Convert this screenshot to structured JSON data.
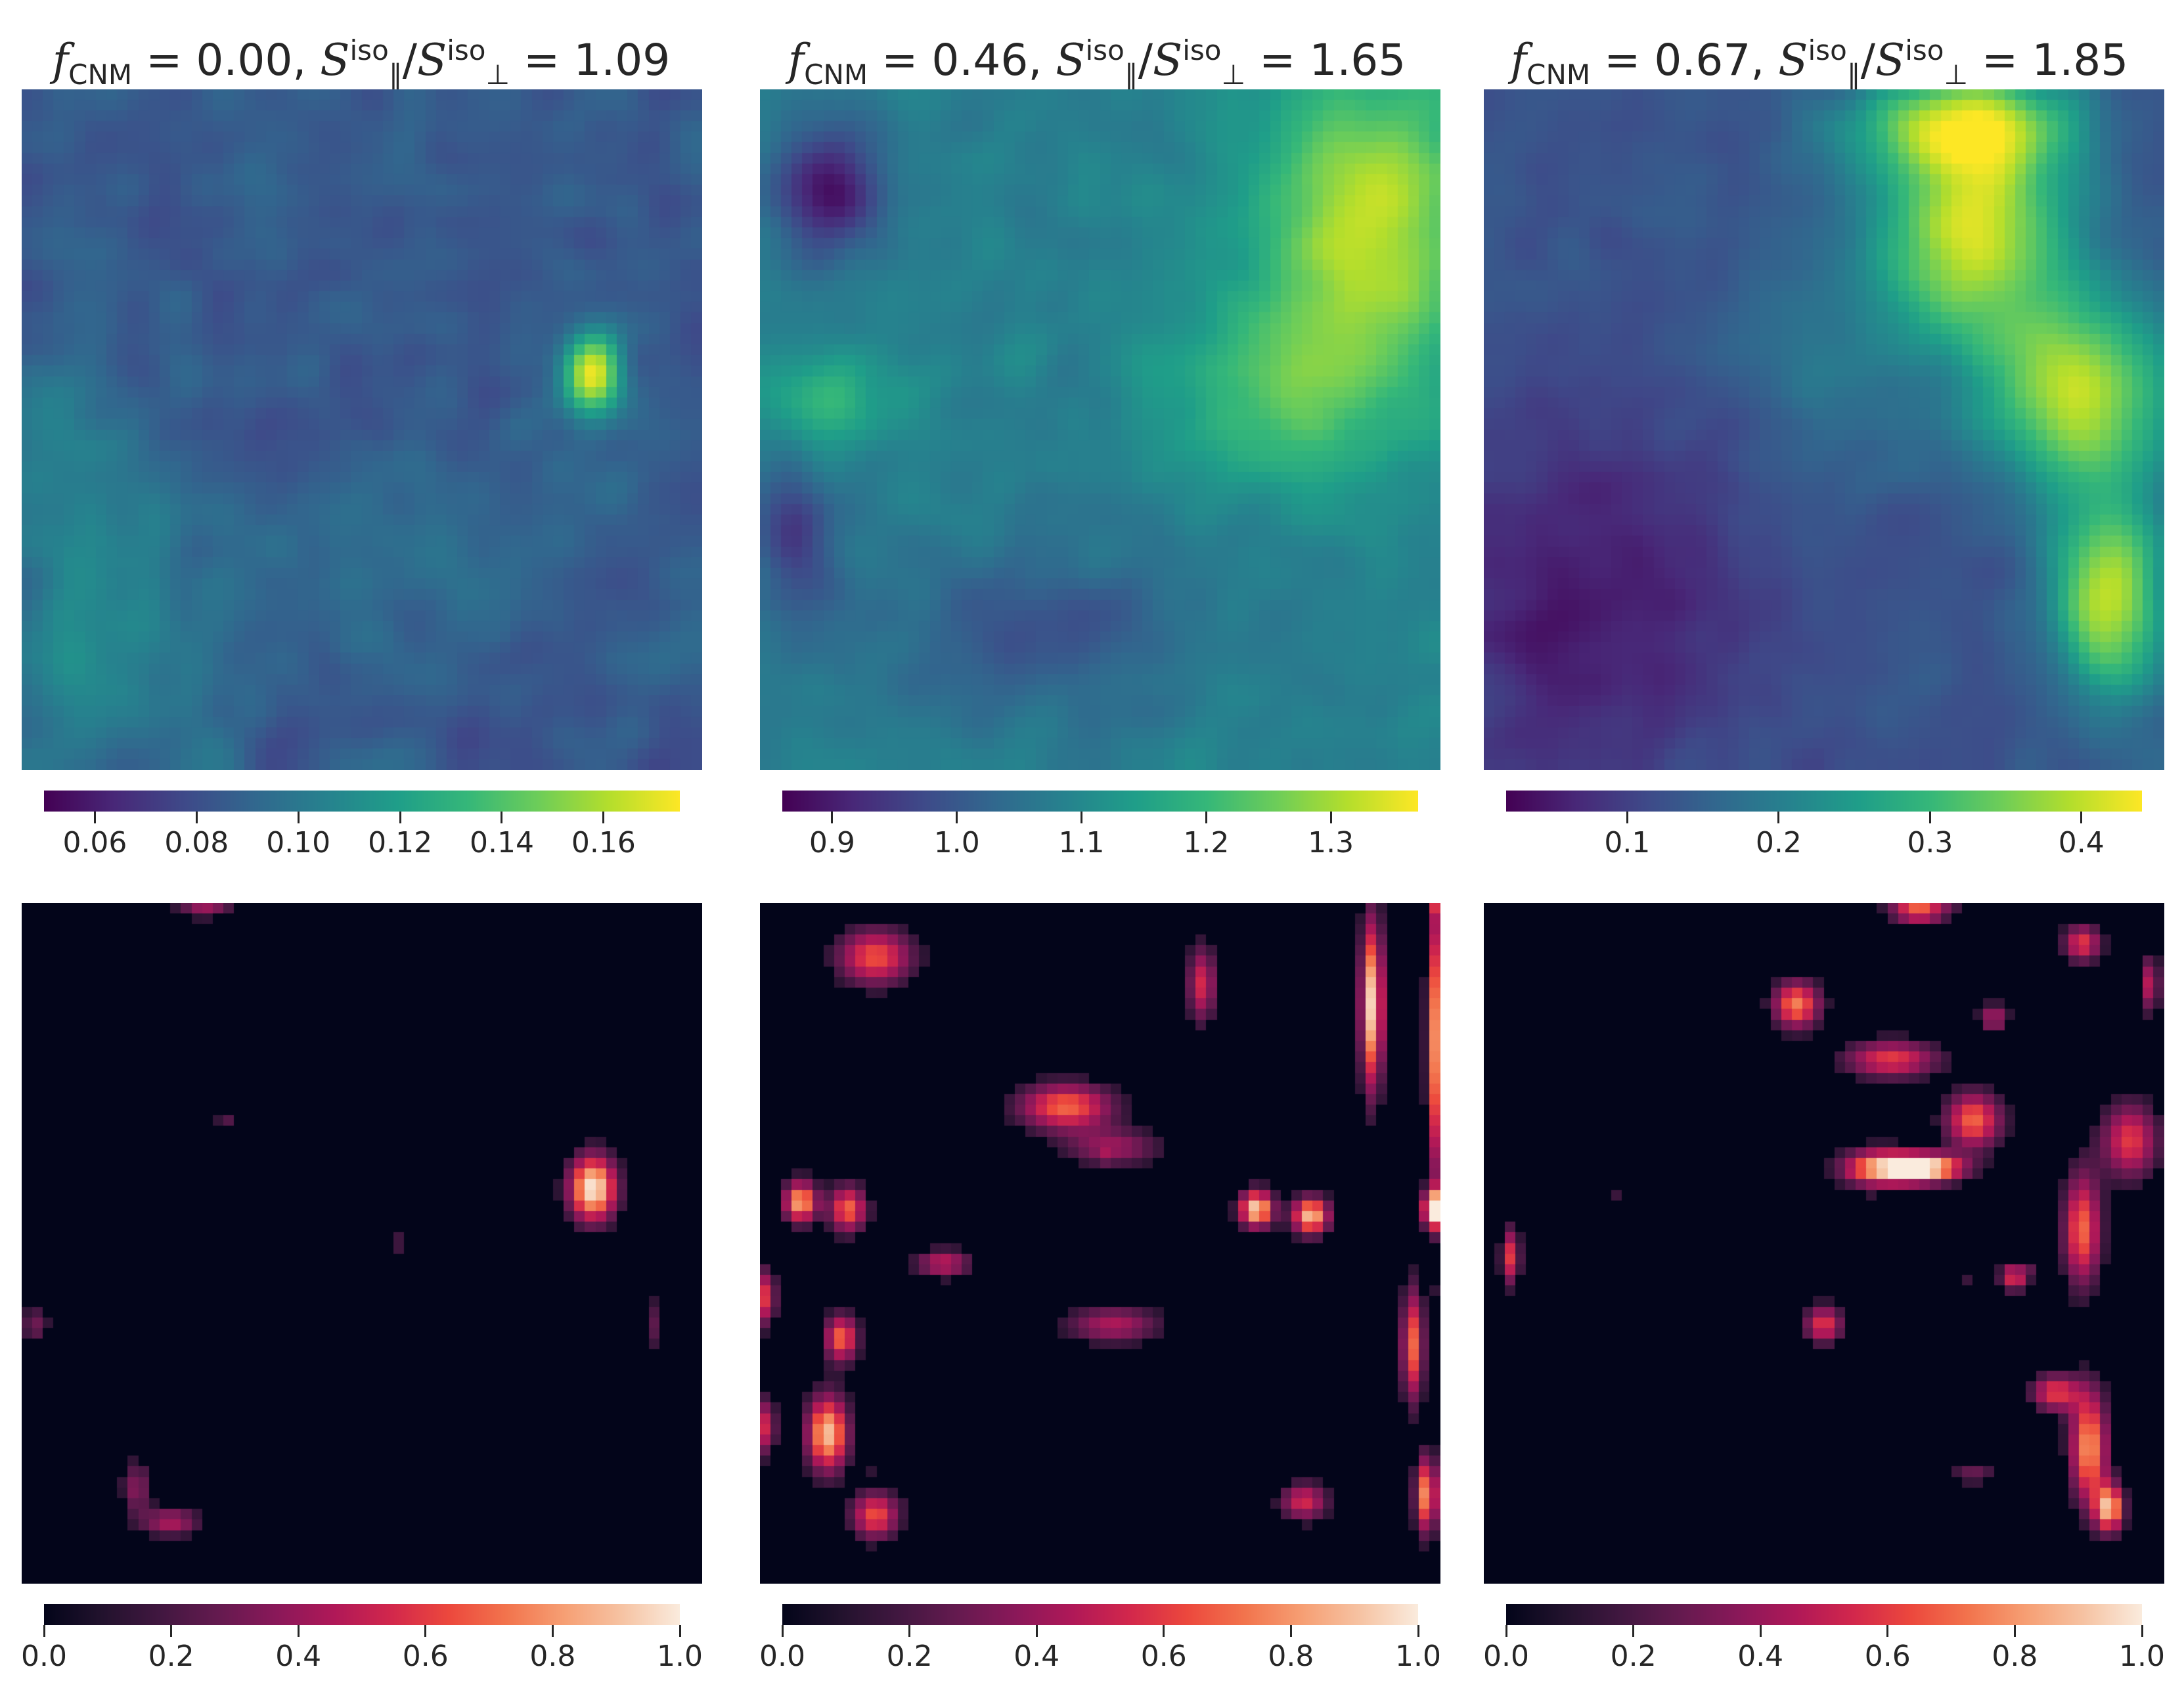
{
  "panels": [
    {
      "title_parts": {
        "f": "f",
        "sub": "CNM",
        "eq1": " = 0.00, ",
        "s1": "S",
        "sup1": "iso",
        "sub1": "∥",
        "slash": "/",
        "s2": "S",
        "sup2": "iso",
        "sub2": "⊥",
        "eq2": " = 1.09"
      }
    },
    {
      "title_parts": {
        "f": "f",
        "sub": "CNM",
        "eq1": " = 0.46, ",
        "s1": "S",
        "sup1": "iso",
        "sub1": "∥",
        "slash": "/",
        "s2": "S",
        "sup2": "iso",
        "sub2": "⊥",
        "eq2": " = 1.65"
      }
    },
    {
      "title_parts": {
        "f": "f",
        "sub": "CNM",
        "eq1": " = 0.67, ",
        "s1": "S",
        "sup1": "iso",
        "sub1": "∥",
        "slash": "/",
        "s2": "S",
        "sup2": "iso",
        "sub2": "⊥",
        "eq2": " = 1.85"
      }
    }
  ],
  "chart_data": [
    {
      "type": "heatmap",
      "colormap": "viridis",
      "grid_shape": [
        64,
        64
      ],
      "range": [
        0.05,
        0.175
      ],
      "colorbar": {
        "orientation": "horizontal",
        "ticks": [
          0.06,
          0.08,
          0.1,
          0.12,
          0.14,
          0.16
        ],
        "tick_labels": [
          "0.06",
          "0.08",
          "0.10",
          "0.12",
          "0.14",
          "0.16"
        ]
      },
      "background": 0.085,
      "features": [
        {
          "x": 0.84,
          "y": 0.42,
          "sx": 0.03,
          "sy": 0.04,
          "amp": 0.09
        },
        {
          "x": 0.1,
          "y": 0.8,
          "sx": 0.12,
          "sy": 0.14,
          "amp": 0.025
        },
        {
          "x": 0.05,
          "y": 0.5,
          "sx": 0.06,
          "sy": 0.1,
          "amp": 0.015
        },
        {
          "x": 0.6,
          "y": 0.7,
          "sx": 0.15,
          "sy": 0.1,
          "amp": 0.01
        }
      ],
      "noise_amp": 0.012
    },
    {
      "type": "heatmap",
      "colormap": "viridis",
      "grid_shape": [
        64,
        64
      ],
      "range": [
        0.86,
        1.37
      ],
      "colorbar": {
        "orientation": "horizontal",
        "ticks": [
          0.9,
          1.0,
          1.1,
          1.2,
          1.3
        ],
        "tick_labels": [
          "0.9",
          "1.0",
          "1.1",
          "1.2",
          "1.3"
        ]
      },
      "background": 1.08,
      "features": [
        {
          "x": 0.9,
          "y": 0.2,
          "sx": 0.12,
          "sy": 0.18,
          "amp": 0.24
        },
        {
          "x": 0.75,
          "y": 0.45,
          "sx": 0.12,
          "sy": 0.1,
          "amp": 0.12
        },
        {
          "x": 0.1,
          "y": 0.46,
          "sx": 0.07,
          "sy": 0.05,
          "amp": 0.1
        },
        {
          "x": 0.1,
          "y": 0.15,
          "sx": 0.06,
          "sy": 0.07,
          "amp": -0.18
        },
        {
          "x": 0.4,
          "y": 0.8,
          "sx": 0.18,
          "sy": 0.08,
          "amp": -0.09
        },
        {
          "x": 0.05,
          "y": 0.65,
          "sx": 0.04,
          "sy": 0.08,
          "amp": -0.12
        }
      ],
      "noise_amp": 0.03
    },
    {
      "type": "heatmap",
      "colormap": "viridis",
      "grid_shape": [
        64,
        64
      ],
      "range": [
        0.02,
        0.44
      ],
      "colorbar": {
        "orientation": "horizontal",
        "ticks": [
          0.1,
          0.2,
          0.3,
          0.4
        ],
        "tick_labels": [
          "0.1",
          "0.2",
          "0.3",
          "0.4"
        ]
      },
      "background": 0.13,
      "features": [
        {
          "x": 0.72,
          "y": 0.2,
          "sx": 0.1,
          "sy": 0.12,
          "amp": 0.28
        },
        {
          "x": 0.88,
          "y": 0.45,
          "sx": 0.1,
          "sy": 0.1,
          "amp": 0.26
        },
        {
          "x": 0.92,
          "y": 0.75,
          "sx": 0.06,
          "sy": 0.1,
          "amp": 0.27
        },
        {
          "x": 0.7,
          "y": 0.05,
          "sx": 0.12,
          "sy": 0.05,
          "amp": 0.2
        },
        {
          "x": 0.15,
          "y": 0.75,
          "sx": 0.18,
          "sy": 0.2,
          "amp": -0.08
        },
        {
          "x": 0.5,
          "y": 0.4,
          "sx": 0.12,
          "sy": 0.12,
          "amp": 0.05
        }
      ],
      "noise_amp": 0.025
    },
    {
      "type": "heatmap",
      "colormap": "rocket",
      "grid_shape": [
        64,
        64
      ],
      "range": [
        0.0,
        1.0
      ],
      "colorbar": {
        "orientation": "horizontal",
        "ticks": [
          0.0,
          0.2,
          0.4,
          0.6,
          0.8,
          1.0
        ],
        "tick_labels": [
          "0.0",
          "0.2",
          "0.4",
          "0.6",
          "0.8",
          "1.0"
        ]
      },
      "threshold": 0.12,
      "blobs": [
        {
          "x": 0.84,
          "y": 0.42,
          "sx": 0.025,
          "sy": 0.035,
          "amp": 1.0
        },
        {
          "x": 0.22,
          "y": 0.91,
          "sx": 0.03,
          "sy": 0.015,
          "amp": 0.45
        },
        {
          "x": 0.17,
          "y": 0.86,
          "sx": 0.015,
          "sy": 0.03,
          "amp": 0.35
        },
        {
          "x": 0.27,
          "y": 0.0,
          "sx": 0.03,
          "sy": 0.015,
          "amp": 0.45
        },
        {
          "x": 0.3,
          "y": 0.32,
          "sx": 0.01,
          "sy": 0.01,
          "amp": 0.25
        },
        {
          "x": 0.93,
          "y": 0.62,
          "sx": 0.01,
          "sy": 0.03,
          "amp": 0.25
        },
        {
          "x": 0.02,
          "y": 0.62,
          "sx": 0.015,
          "sy": 0.02,
          "amp": 0.3
        },
        {
          "x": 0.55,
          "y": 0.5,
          "sx": 0.01,
          "sy": 0.02,
          "amp": 0.2
        }
      ],
      "noise_amp": 0.3,
      "noise_scale": 0.6
    },
    {
      "type": "heatmap",
      "colormap": "rocket",
      "grid_shape": [
        64,
        64
      ],
      "range": [
        0.0,
        1.0
      ],
      "colorbar": {
        "orientation": "horizontal",
        "ticks": [
          0.0,
          0.2,
          0.4,
          0.6,
          0.8,
          1.0
        ],
        "tick_labels": [
          "0.0",
          "0.2",
          "0.4",
          "0.6",
          "0.8",
          "1.0"
        ]
      },
      "threshold": 0.12,
      "blobs": [
        {
          "x": 0.9,
          "y": 0.15,
          "sx": 0.012,
          "sy": 0.09,
          "amp": 0.95
        },
        {
          "x": 0.995,
          "y": 0.2,
          "sx": 0.01,
          "sy": 0.15,
          "amp": 0.8
        },
        {
          "x": 0.995,
          "y": 0.45,
          "sx": 0.015,
          "sy": 0.02,
          "amp": 1.0
        },
        {
          "x": 0.73,
          "y": 0.45,
          "sx": 0.018,
          "sy": 0.02,
          "amp": 0.95
        },
        {
          "x": 0.81,
          "y": 0.46,
          "sx": 0.02,
          "sy": 0.02,
          "amp": 0.9
        },
        {
          "x": 0.06,
          "y": 0.44,
          "sx": 0.018,
          "sy": 0.022,
          "amp": 0.85
        },
        {
          "x": 0.13,
          "y": 0.45,
          "sx": 0.02,
          "sy": 0.025,
          "amp": 0.7
        },
        {
          "x": 0.45,
          "y": 0.3,
          "sx": 0.05,
          "sy": 0.025,
          "amp": 0.7
        },
        {
          "x": 0.17,
          "y": 0.08,
          "sx": 0.04,
          "sy": 0.03,
          "amp": 0.65
        },
        {
          "x": 0.1,
          "y": 0.78,
          "sx": 0.022,
          "sy": 0.04,
          "amp": 0.9
        },
        {
          "x": 0.17,
          "y": 0.9,
          "sx": 0.025,
          "sy": 0.025,
          "amp": 0.65
        },
        {
          "x": 0.12,
          "y": 0.64,
          "sx": 0.018,
          "sy": 0.025,
          "amp": 0.7
        },
        {
          "x": 0.96,
          "y": 0.65,
          "sx": 0.012,
          "sy": 0.06,
          "amp": 0.7
        },
        {
          "x": 0.98,
          "y": 0.87,
          "sx": 0.012,
          "sy": 0.04,
          "amp": 0.8
        },
        {
          "x": 0.8,
          "y": 0.88,
          "sx": 0.025,
          "sy": 0.02,
          "amp": 0.55
        },
        {
          "x": 0.27,
          "y": 0.53,
          "sx": 0.03,
          "sy": 0.015,
          "amp": 0.5
        },
        {
          "x": 0.52,
          "y": 0.62,
          "sx": 0.05,
          "sy": 0.02,
          "amp": 0.45
        },
        {
          "x": 0.65,
          "y": 0.12,
          "sx": 0.015,
          "sy": 0.04,
          "amp": 0.55
        },
        {
          "x": 0.52,
          "y": 0.36,
          "sx": 0.05,
          "sy": 0.02,
          "amp": 0.4
        },
        {
          "x": 0.01,
          "y": 0.58,
          "sx": 0.01,
          "sy": 0.03,
          "amp": 0.6
        },
        {
          "x": 0.01,
          "y": 0.77,
          "sx": 0.01,
          "sy": 0.03,
          "amp": 0.55
        }
      ],
      "noise_amp": 0.45,
      "noise_scale": 0.5
    },
    {
      "type": "heatmap",
      "colormap": "rocket",
      "grid_shape": [
        64,
        64
      ],
      "range": [
        0.0,
        1.0
      ],
      "colorbar": {
        "orientation": "horizontal",
        "ticks": [
          0.0,
          0.2,
          0.4,
          0.6,
          0.8,
          1.0
        ],
        "tick_labels": [
          "0.0",
          "0.2",
          "0.4",
          "0.6",
          "0.8",
          "1.0"
        ]
      },
      "threshold": 0.12,
      "blobs": [
        {
          "x": 0.65,
          "y": 0.39,
          "sx": 0.04,
          "sy": 0.015,
          "amp": 1.0
        },
        {
          "x": 0.58,
          "y": 0.39,
          "sx": 0.04,
          "sy": 0.02,
          "amp": 0.75
        },
        {
          "x": 0.72,
          "y": 0.32,
          "sx": 0.03,
          "sy": 0.03,
          "amp": 0.7
        },
        {
          "x": 0.6,
          "y": 0.23,
          "sx": 0.05,
          "sy": 0.02,
          "amp": 0.6
        },
        {
          "x": 0.46,
          "y": 0.15,
          "sx": 0.025,
          "sy": 0.025,
          "amp": 0.75
        },
        {
          "x": 0.88,
          "y": 0.48,
          "sx": 0.02,
          "sy": 0.06,
          "amp": 0.7
        },
        {
          "x": 0.95,
          "y": 0.35,
          "sx": 0.03,
          "sy": 0.04,
          "amp": 0.6
        },
        {
          "x": 0.89,
          "y": 0.8,
          "sx": 0.02,
          "sy": 0.06,
          "amp": 0.8
        },
        {
          "x": 0.92,
          "y": 0.89,
          "sx": 0.015,
          "sy": 0.025,
          "amp": 0.85
        },
        {
          "x": 0.84,
          "y": 0.72,
          "sx": 0.025,
          "sy": 0.02,
          "amp": 0.6
        },
        {
          "x": 0.64,
          "y": 0.01,
          "sx": 0.03,
          "sy": 0.015,
          "amp": 0.7
        },
        {
          "x": 0.88,
          "y": 0.06,
          "sx": 0.02,
          "sy": 0.02,
          "amp": 0.6
        },
        {
          "x": 0.75,
          "y": 0.17,
          "sx": 0.015,
          "sy": 0.015,
          "amp": 0.45
        },
        {
          "x": 0.5,
          "y": 0.62,
          "sx": 0.02,
          "sy": 0.02,
          "amp": 0.6
        },
        {
          "x": 0.78,
          "y": 0.55,
          "sx": 0.015,
          "sy": 0.015,
          "amp": 0.6
        },
        {
          "x": 0.04,
          "y": 0.52,
          "sx": 0.01,
          "sy": 0.03,
          "amp": 0.6
        },
        {
          "x": 0.98,
          "y": 0.12,
          "sx": 0.01,
          "sy": 0.03,
          "amp": 0.5
        },
        {
          "x": 0.72,
          "y": 0.84,
          "sx": 0.025,
          "sy": 0.01,
          "amp": 0.3
        }
      ],
      "noise_amp": 0.35,
      "noise_scale": 0.5
    }
  ]
}
